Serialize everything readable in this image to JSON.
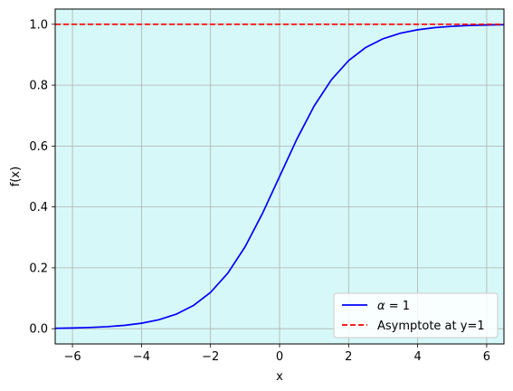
{
  "chart_data": {
    "type": "line",
    "title": "",
    "xlabel": "x",
    "ylabel": "f(x)",
    "xlim": [
      -6.5,
      6.5
    ],
    "ylim": [
      -0.05,
      1.05
    ],
    "xticks": [
      -6,
      -4,
      -2,
      0,
      2,
      4,
      6
    ],
    "xtick_labels": [
      "−6",
      "−4",
      "−2",
      "0",
      "2",
      "4",
      "6"
    ],
    "yticks": [
      0.0,
      0.2,
      0.4,
      0.6,
      0.8,
      1.0
    ],
    "ytick_labels": [
      "0.0",
      "0.2",
      "0.4",
      "0.6",
      "0.8",
      "1.0"
    ],
    "grid": true,
    "background_color": "#d7f8f8",
    "legend_position": "lower-right",
    "series": [
      {
        "name_prefix": "α",
        "name_suffix": " = 1",
        "color": "#0000ff",
        "style": "solid",
        "x": [
          -6.5,
          -6.0,
          -5.5,
          -5.0,
          -4.5,
          -4.0,
          -3.5,
          -3.0,
          -2.5,
          -2.0,
          -1.5,
          -1.0,
          -0.5,
          0.0,
          0.5,
          1.0,
          1.5,
          2.0,
          2.5,
          3.0,
          3.5,
          4.0,
          4.5,
          5.0,
          5.5,
          6.0,
          6.5
        ],
        "y": [
          0.0015,
          0.0025,
          0.0041,
          0.0067,
          0.011,
          0.018,
          0.0293,
          0.0474,
          0.0759,
          0.1192,
          0.1824,
          0.2689,
          0.3775,
          0.5,
          0.6225,
          0.7311,
          0.8176,
          0.8808,
          0.9241,
          0.9526,
          0.9707,
          0.982,
          0.989,
          0.9933,
          0.9959,
          0.9975,
          0.9985
        ]
      },
      {
        "name": "Asymptote at y=1",
        "color": "#ff0000",
        "style": "dashed",
        "x": [
          -6.5,
          6.5
        ],
        "y": [
          1.0,
          1.0
        ]
      }
    ]
  }
}
